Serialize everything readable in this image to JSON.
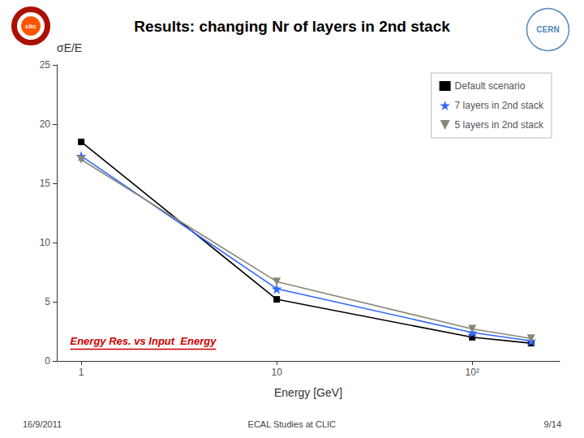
{
  "chart_data": {
    "type": "line",
    "title": "Results: changing Nr of layers in 2nd stack",
    "xlabel": "Energy [GeV]",
    "ylabel": "σE/E",
    "log": "x",
    "xlim": [
      0.75,
      280
    ],
    "xticks": [
      1,
      10,
      {
        "value": 100,
        "label": "10²"
      }
    ],
    "ylim": [
      0,
      25
    ],
    "yticks": [
      0,
      5,
      10,
      15,
      20,
      25
    ],
    "grid": false,
    "legend": "upper right",
    "x": [
      1,
      10,
      100,
      200
    ],
    "series": [
      {
        "name": "Default scenario",
        "color": "#000000",
        "marker": "square",
        "values": [
          18.5,
          5.2,
          2.0,
          1.5
        ]
      },
      {
        "name": "7 layers in 2nd stack",
        "color": "#3366ff",
        "marker": "star",
        "values": [
          17.3,
          6.1,
          2.4,
          1.7
        ]
      },
      {
        "name": "5 layers in 2nd stack",
        "color": "#888877",
        "marker": "triangle_down",
        "values": [
          17.0,
          6.7,
          2.7,
          1.9
        ]
      }
    ],
    "annotations": [
      {
        "text": "Energy Res. vs Input  Energy",
        "color": "#cc0000"
      }
    ],
    "footer": [
      "16/9/2011",
      "ECAL Studies at CLIC",
      "9/14"
    ],
    "logos": [
      "clic",
      "CERN"
    ]
  }
}
